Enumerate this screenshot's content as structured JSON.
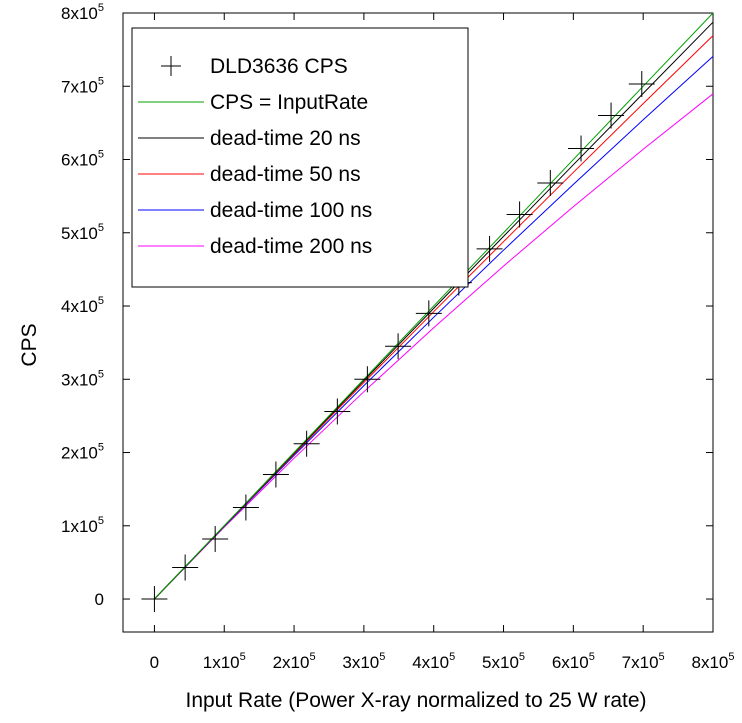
{
  "chart_data": {
    "type": "line",
    "xlabel": "Input Rate (Power X-ray normalized to 25 W rate)",
    "ylabel": "CPS",
    "xlim": [
      -45000,
      800000
    ],
    "ylim": [
      -45000,
      800000
    ],
    "grid": false,
    "legend_position": "top-left",
    "x_ticks": [
      {
        "value": 0,
        "label": "0",
        "exp": ""
      },
      {
        "value": 100000,
        "label": "1x10",
        "exp": "5"
      },
      {
        "value": 200000,
        "label": "2x10",
        "exp": "5"
      },
      {
        "value": 300000,
        "label": "3x10",
        "exp": "5"
      },
      {
        "value": 400000,
        "label": "4x10",
        "exp": "5"
      },
      {
        "value": 500000,
        "label": "5x10",
        "exp": "5"
      },
      {
        "value": 600000,
        "label": "6x10",
        "exp": "5"
      },
      {
        "value": 700000,
        "label": "7x10",
        "exp": "5"
      },
      {
        "value": 800000,
        "label": "8x10",
        "exp": "5"
      }
    ],
    "y_ticks": [
      {
        "value": 0,
        "label": "0",
        "exp": ""
      },
      {
        "value": 100000,
        "label": "1x10",
        "exp": "5"
      },
      {
        "value": 200000,
        "label": "2x10",
        "exp": "5"
      },
      {
        "value": 300000,
        "label": "3x10",
        "exp": "5"
      },
      {
        "value": 400000,
        "label": "4x10",
        "exp": "5"
      },
      {
        "value": 500000,
        "label": "5x10",
        "exp": "5"
      },
      {
        "value": 600000,
        "label": "6x10",
        "exp": "5"
      },
      {
        "value": 700000,
        "label": "7x10",
        "exp": "5"
      },
      {
        "value": 800000,
        "label": "8x10",
        "exp": "5"
      }
    ],
    "series": [
      {
        "name": "DLD3636 CPS",
        "kind": "marker",
        "marker": "plus",
        "color": "#000000",
        "x": [
          0,
          44000,
          87000,
          131000,
          174000,
          218000,
          262000,
          305000,
          349000,
          393000,
          436000,
          480000,
          523000,
          567000,
          611000,
          654000,
          698000
        ],
        "y": [
          0,
          43000,
          82000,
          125000,
          170000,
          212000,
          256000,
          300000,
          345000,
          390000,
          432000,
          478000,
          525000,
          568000,
          615000,
          660000,
          703000
        ]
      },
      {
        "name": "CPS = InputRate",
        "kind": "line",
        "color": "#00a000",
        "x": [
          0,
          800000
        ],
        "y": [
          0,
          800000
        ]
      },
      {
        "name": "dead-time 20 ns",
        "kind": "line",
        "color": "#000000",
        "x": [
          0,
          100000,
          200000,
          300000,
          400000,
          500000,
          600000,
          700000,
          800000
        ],
        "y": [
          0,
          99800,
          199200,
          298200,
          396800,
          495000,
          592900,
          690300,
          787400
        ]
      },
      {
        "name": "dead-time 50 ns",
        "kind": "line",
        "color": "#ff0000",
        "x": [
          0,
          100000,
          200000,
          300000,
          400000,
          500000,
          600000,
          700000,
          800000
        ],
        "y": [
          0,
          99500,
          198000,
          295600,
          392200,
          487800,
          582500,
          676300,
          769200
        ]
      },
      {
        "name": "dead-time 100 ns",
        "kind": "line",
        "color": "#0000ff",
        "x": [
          0,
          100000,
          200000,
          300000,
          400000,
          500000,
          600000,
          700000,
          800000
        ],
        "y": [
          0,
          99000,
          196100,
          291300,
          384600,
          476200,
          566000,
          654200,
          740700
        ]
      },
      {
        "name": "dead-time 200 ns",
        "kind": "line",
        "color": "#ff00ff",
        "x": [
          0,
          100000,
          200000,
          300000,
          400000,
          500000,
          600000,
          700000,
          800000
        ],
        "y": [
          0,
          98000,
          192300,
          283000,
          370400,
          454500,
          535700,
          614000,
          689700
        ]
      }
    ]
  }
}
